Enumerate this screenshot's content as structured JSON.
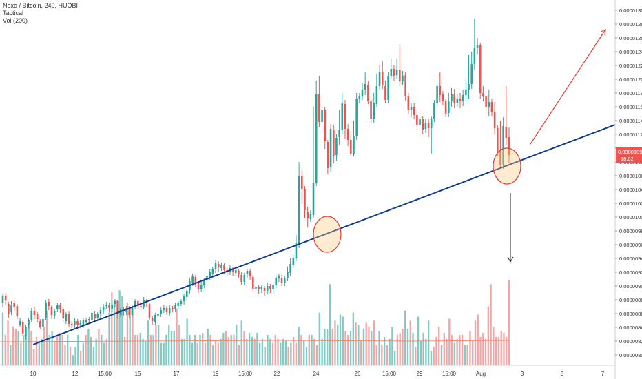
{
  "legend": {
    "title": "Nexo / Bitcoin, 240, HUOBI",
    "line2": "Tactical",
    "line3": "Vol (200)"
  },
  "colors": {
    "up": "#26a69a",
    "down": "#ef5350",
    "vol_up": "#80cbc4",
    "vol_down": "#f4a5a5",
    "trendline": "#0d3d8c",
    "ma": "#f08c6c",
    "arrow_red": "#e53935",
    "arrow_black": "#222222",
    "price_badge": "#ef5350"
  },
  "price_badge": {
    "price": "0.00001090",
    "timer": "18:02"
  },
  "chart_data": {
    "type": "candlestick",
    "title": "Nexo / Bitcoin, 240, HUOBI",
    "y_axis": {
      "min": 7.9e-06,
      "max": 1.31e-05,
      "tick_labels": [
        "0.00001300",
        "0.00001280",
        "0.00001260",
        "0.00001240",
        "0.00001220",
        "0.00001200",
        "0.00001180",
        "0.00001160",
        "0.00001140",
        "0.00001120",
        "0.00001100",
        "0.00001080",
        "0.00001060",
        "0.00001040",
        "0.00001020",
        "0.00001000",
        "0.00000980",
        "0.00000960",
        "0.00000940",
        "0.00000920",
        "0.00000900",
        "0.00000880",
        "0.00000860",
        "0.00000840",
        "0.00000820",
        "0.00000800"
      ]
    },
    "x_axis": {
      "tick_labels": [
        "10",
        "12",
        "15:00",
        "15",
        "17",
        "19",
        "15:00",
        "22",
        "24",
        "26",
        "15:00",
        "29",
        "15:00",
        "Aug",
        "3",
        "5",
        "7"
      ]
    },
    "candles": [
      [
        875,
        885,
        869,
        888
      ],
      [
        886,
        879,
        872,
        890
      ],
      [
        874,
        860,
        854,
        877
      ],
      [
        862,
        873,
        858,
        878
      ],
      [
        876,
        870,
        863,
        880
      ],
      [
        871,
        856,
        852,
        874
      ],
      [
        843,
        849,
        841,
        854
      ],
      [
        848,
        831,
        827,
        851
      ],
      [
        827,
        841,
        822,
        844
      ],
      [
        843,
        850,
        838,
        854
      ],
      [
        851,
        864,
        847,
        868
      ],
      [
        864,
        858,
        852,
        870
      ],
      [
        859,
        852,
        847,
        862
      ],
      [
        849,
        841,
        838,
        852
      ],
      [
        840,
        852,
        836,
        856
      ],
      [
        854,
        876,
        851,
        880
      ],
      [
        877,
        871,
        865,
        881
      ],
      [
        870,
        858,
        852,
        872
      ],
      [
        857,
        863,
        852,
        866
      ],
      [
        866,
        872,
        862,
        876
      ],
      [
        873,
        866,
        861,
        876
      ],
      [
        866,
        853,
        848,
        869
      ],
      [
        849,
        859,
        845,
        862
      ],
      [
        859,
        845,
        840,
        863
      ],
      [
        845,
        843,
        839,
        849
      ],
      [
        843,
        849,
        839,
        853
      ],
      [
        849,
        843,
        838,
        852
      ],
      [
        843,
        846,
        839,
        851
      ],
      [
        844,
        850,
        839,
        853
      ],
      [
        848,
        850,
        845,
        854
      ],
      [
        852,
        850,
        846,
        855
      ],
      [
        851,
        861,
        848,
        866
      ],
      [
        860,
        853,
        847,
        863
      ],
      [
        854,
        859,
        849,
        862
      ],
      [
        859,
        865,
        854,
        870
      ],
      [
        865,
        870,
        860,
        874
      ],
      [
        871,
        873,
        867,
        877
      ],
      [
        872,
        868,
        862,
        875
      ],
      [
        867,
        873,
        862,
        877
      ],
      [
        874,
        878,
        869,
        881
      ],
      [
        878,
        859,
        853,
        880
      ],
      [
        858,
        866,
        854,
        869
      ],
      [
        865,
        863,
        857,
        870
      ],
      [
        862,
        868,
        858,
        871
      ],
      [
        868,
        858,
        853,
        871
      ],
      [
        858,
        869,
        855,
        872
      ],
      [
        870,
        878,
        866,
        881
      ],
      [
        878,
        871,
        866,
        880
      ],
      [
        871,
        870,
        866,
        874
      ],
      [
        870,
        880,
        866,
        884
      ],
      [
        879,
        875,
        870,
        881
      ],
      [
        874,
        854,
        850,
        876
      ],
      [
        853,
        849,
        844,
        856
      ],
      [
        848,
        858,
        844,
        861
      ],
      [
        857,
        859,
        853,
        862
      ],
      [
        860,
        865,
        855,
        869
      ],
      [
        865,
        868,
        861,
        872
      ],
      [
        868,
        862,
        858,
        871
      ],
      [
        861,
        868,
        857,
        872
      ],
      [
        868,
        866,
        862,
        871
      ],
      [
        866,
        872,
        862,
        875
      ],
      [
        871,
        875,
        867,
        878
      ],
      [
        874,
        878,
        871,
        881
      ],
      [
        878,
        886,
        873,
        889
      ],
      [
        884,
        893,
        880,
        896
      ],
      [
        894,
        907,
        889,
        911
      ],
      [
        905,
        914,
        900,
        918
      ],
      [
        913,
        905,
        899,
        916
      ],
      [
        904,
        895,
        890,
        907
      ],
      [
        895,
        902,
        891,
        906
      ],
      [
        901,
        908,
        897,
        912
      ],
      [
        909,
        914,
        905,
        918
      ],
      [
        913,
        920,
        909,
        924
      ],
      [
        918,
        924,
        914,
        928
      ],
      [
        924,
        933,
        919,
        937
      ],
      [
        932,
        927,
        921,
        936
      ],
      [
        926,
        930,
        922,
        934
      ],
      [
        930,
        923,
        918,
        933
      ],
      [
        923,
        920,
        915,
        926
      ],
      [
        920,
        926,
        916,
        930
      ],
      [
        926,
        920,
        915,
        928
      ],
      [
        919,
        923,
        915,
        927
      ],
      [
        922,
        917,
        912,
        925
      ],
      [
        916,
        906,
        902,
        920
      ],
      [
        906,
        916,
        901,
        919
      ],
      [
        917,
        922,
        912,
        925
      ],
      [
        922,
        914,
        909,
        925
      ],
      [
        913,
        896,
        891,
        916
      ],
      [
        896,
        899,
        890,
        902
      ],
      [
        898,
        895,
        889,
        901
      ],
      [
        896,
        898,
        890,
        901
      ],
      [
        897,
        892,
        886,
        900
      ],
      [
        892,
        900,
        888,
        905
      ],
      [
        900,
        896,
        890,
        903
      ],
      [
        896,
        902,
        890,
        906
      ],
      [
        901,
        912,
        897,
        916
      ],
      [
        911,
        914,
        906,
        918
      ],
      [
        912,
        905,
        900,
        916
      ],
      [
        905,
        911,
        900,
        915
      ],
      [
        911,
        920,
        907,
        928
      ],
      [
        919,
        932,
        915,
        940
      ],
      [
        931,
        940,
        926,
        945
      ],
      [
        940,
        962,
        936,
        974
      ],
      [
        961,
        1060,
        955,
        1080
      ],
      [
        1060,
        1041,
        1020,
        1068
      ],
      [
        1040,
        1010,
        998,
        1045
      ],
      [
        1008,
        998,
        985,
        1015
      ],
      [
        997,
        1004,
        993,
        1010
      ],
      [
        1003,
        1050,
        999,
        1160
      ],
      [
        1049,
        1178,
        1045,
        1198
      ],
      [
        1178,
        1138,
        1130,
        1205
      ],
      [
        1138,
        1155,
        1128,
        1162
      ],
      [
        1156,
        1110,
        1099,
        1160
      ],
      [
        1109,
        1071,
        1062,
        1112
      ],
      [
        1072,
        1128,
        1066,
        1135
      ],
      [
        1127,
        1089,
        1078,
        1134
      ],
      [
        1090,
        1115,
        1082,
        1120
      ],
      [
        1116,
        1127,
        1105,
        1155
      ],
      [
        1127,
        1165,
        1120,
        1180
      ],
      [
        1164,
        1128,
        1114,
        1170
      ],
      [
        1128,
        1112,
        1103,
        1135
      ],
      [
        1112,
        1092,
        1089,
        1120
      ],
      [
        1092,
        1118,
        1088,
        1140
      ],
      [
        1118,
        1172,
        1112,
        1180
      ],
      [
        1172,
        1175,
        1165,
        1180
      ],
      [
        1175,
        1185,
        1170,
        1195
      ],
      [
        1185,
        1193,
        1177,
        1210
      ],
      [
        1192,
        1168,
        1164,
        1197
      ],
      [
        1168,
        1143,
        1138,
        1173
      ],
      [
        1143,
        1165,
        1137,
        1180
      ],
      [
        1164,
        1190,
        1160,
        1208
      ],
      [
        1190,
        1210,
        1185,
        1220
      ],
      [
        1210,
        1191,
        1186,
        1227
      ],
      [
        1190,
        1170,
        1165,
        1198
      ],
      [
        1170,
        1205,
        1165,
        1210
      ],
      [
        1205,
        1215,
        1200,
        1230
      ],
      [
        1215,
        1205,
        1198,
        1220
      ],
      [
        1206,
        1214,
        1200,
        1230
      ],
      [
        1214,
        1197,
        1190,
        1250
      ],
      [
        1197,
        1205,
        1192,
        1212
      ],
      [
        1206,
        1175,
        1169,
        1211
      ],
      [
        1175,
        1155,
        1149,
        1180
      ],
      [
        1155,
        1160,
        1145,
        1165
      ],
      [
        1160,
        1148,
        1142,
        1165
      ],
      [
        1148,
        1134,
        1130,
        1155
      ],
      [
        1134,
        1142,
        1130,
        1148
      ],
      [
        1142,
        1127,
        1120,
        1146
      ],
      [
        1128,
        1137,
        1122,
        1142
      ],
      [
        1137,
        1129,
        1116,
        1142
      ],
      [
        1129,
        1142,
        1092,
        1146
      ],
      [
        1142,
        1165,
        1138,
        1170
      ],
      [
        1165,
        1190,
        1159,
        1195
      ],
      [
        1190,
        1177,
        1167,
        1210
      ],
      [
        1178,
        1168,
        1163,
        1183
      ],
      [
        1168,
        1150,
        1145,
        1171
      ],
      [
        1151,
        1168,
        1145,
        1180
      ],
      [
        1168,
        1178,
        1160,
        1188
      ],
      [
        1178,
        1166,
        1158,
        1186
      ],
      [
        1166,
        1172,
        1160,
        1178
      ],
      [
        1172,
        1168,
        1158,
        1180
      ],
      [
        1168,
        1177,
        1161,
        1185
      ],
      [
        1177,
        1185,
        1168,
        1200
      ],
      [
        1185,
        1193,
        1171,
        1235
      ],
      [
        1193,
        1222,
        1186,
        1240
      ],
      [
        1222,
        1245,
        1214,
        1288
      ],
      [
        1245,
        1250,
        1236,
        1260
      ],
      [
        1249,
        1180,
        1172,
        1253
      ],
      [
        1180,
        1175,
        1168,
        1190
      ],
      [
        1175,
        1160,
        1154,
        1182
      ],
      [
        1160,
        1167,
        1146,
        1185
      ],
      [
        1167,
        1152,
        1146,
        1172
      ],
      [
        1153,
        1129,
        1120,
        1167
      ],
      [
        1129,
        1095,
        1088,
        1133
      ],
      [
        1096,
        1075,
        1070,
        1140
      ],
      [
        1076,
        1132,
        1070,
        1145
      ],
      [
        1131,
        1115,
        1105,
        1190
      ],
      [
        1116,
        1090,
        1078,
        1130
      ]
    ],
    "volume": {
      "ma_value": 820,
      "bars": [
        52,
        30,
        44,
        20,
        38,
        36,
        34,
        22,
        30,
        30,
        40,
        34,
        16,
        28,
        24,
        26,
        38,
        54,
        30,
        34,
        24,
        30,
        32,
        30,
        20,
        30,
        18,
        10,
        18,
        30,
        14,
        22,
        30,
        36,
        28,
        18,
        26,
        36,
        30,
        22,
        26,
        52,
        72,
        64,
        64,
        74,
        68,
        28,
        62,
        58,
        56,
        30,
        30,
        32,
        26,
        24,
        44,
        30,
        30,
        40,
        40,
        22,
        22,
        30,
        40,
        34,
        34,
        56,
        40,
        26,
        26,
        46,
        30,
        22,
        30,
        22,
        30,
        32,
        22,
        36,
        30,
        20,
        24,
        22,
        26,
        32,
        34,
        28,
        30,
        30,
        40,
        20,
        44,
        34,
        26,
        32,
        28,
        26,
        32,
        22,
        26,
        18,
        30,
        26,
        22,
        30,
        26,
        22,
        26,
        24,
        18,
        22,
        28,
        22,
        38,
        30,
        24,
        18,
        30,
        30,
        26,
        20,
        52,
        26,
        36,
        36,
        80,
        36,
        44,
        40,
        50,
        48,
        34,
        30,
        34,
        52,
        42,
        40,
        24,
        36,
        42,
        38,
        34,
        44,
        20,
        34,
        20,
        28,
        20,
        26,
        38,
        14,
        30,
        32,
        36,
        54,
        36,
        44,
        32,
        18,
        48,
        24,
        32,
        26,
        44,
        14,
        18,
        28,
        38,
        20,
        32,
        26,
        46,
        30,
        22,
        26,
        30,
        30,
        20,
        20,
        34,
        24,
        44,
        50,
        28,
        32,
        26,
        58,
        80,
        38,
        28,
        28,
        34,
        32,
        28,
        84
      ],
      "up": [
        1,
        0,
        0,
        1,
        0,
        0,
        1,
        0,
        1,
        1,
        1,
        0,
        0,
        0,
        1,
        1,
        0,
        0,
        1,
        1,
        0,
        0,
        1,
        0,
        0,
        1,
        0,
        1,
        1,
        1,
        0,
        1,
        0,
        1,
        1,
        1,
        1,
        0,
        1,
        1,
        0,
        1,
        0,
        1,
        0,
        1,
        1,
        0,
        0,
        1,
        0,
        0,
        0,
        1,
        1,
        1,
        1,
        0,
        1,
        0,
        1,
        1,
        1,
        1,
        1,
        1,
        1,
        0,
        0,
        1,
        1,
        1,
        1,
        1,
        1,
        0,
        1,
        0,
        0,
        1,
        0,
        1,
        0,
        0,
        1,
        1,
        0,
        0,
        1,
        0,
        1,
        0,
        1,
        0,
        1,
        1,
        1,
        0,
        1,
        1,
        1,
        1,
        1,
        1,
        0,
        0,
        0,
        1,
        1,
        1,
        0,
        1,
        0,
        0,
        1,
        0,
        1,
        1,
        0,
        1,
        0,
        0,
        1,
        1,
        1,
        1,
        1,
        0,
        0,
        1,
        1,
        1,
        0,
        0,
        1,
        1,
        0,
        1,
        0,
        1,
        0,
        0,
        1,
        0,
        0,
        1,
        0,
        1,
        0,
        1,
        1,
        1,
        0,
        0,
        0,
        1,
        1,
        0,
        1,
        0,
        1,
        1,
        1,
        1,
        1,
        1,
        0,
        0,
        0,
        1,
        0,
        0,
        0,
        0,
        1,
        0,
        0,
        0,
        1,
        0,
        0,
        0,
        0,
        0,
        0,
        0,
        0,
        0,
        0,
        0,
        0,
        0,
        0,
        0,
        0,
        0,
        0,
        0,
        0,
        0
      ]
    }
  }
}
